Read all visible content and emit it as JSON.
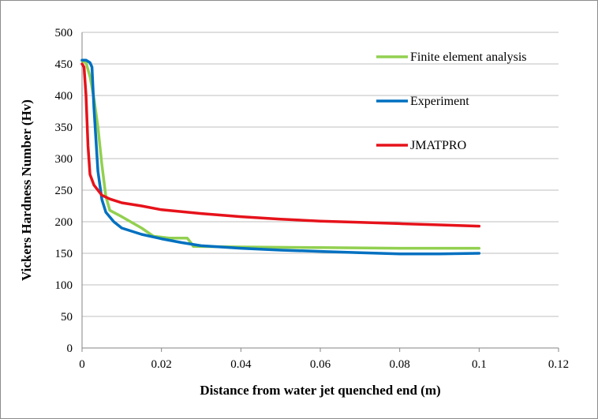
{
  "chart_data": {
    "type": "line",
    "title": "",
    "xlabel": "Distance from water jet quenched end (m)",
    "ylabel": "Vickers  Hardness Number (Hv)",
    "xlim": [
      0,
      0.12
    ],
    "ylim": [
      0,
      500
    ],
    "x_ticks": [
      "0",
      "0.02",
      "0.04",
      "0.06",
      "0.08",
      "0.1",
      "0.12"
    ],
    "y_ticks": [
      "0",
      "50",
      "100",
      "150",
      "200",
      "250",
      "300",
      "350",
      "400",
      "450",
      "500"
    ],
    "grid": "horizontal",
    "legend_position": "top-right",
    "series": [
      {
        "name": "Finite element analysis",
        "color": "#92d050",
        "points": [
          [
            0,
            455
          ],
          [
            0.001,
            452
          ],
          [
            0.002,
            430
          ],
          [
            0.003,
            395
          ],
          [
            0.004,
            350
          ],
          [
            0.005,
            290
          ],
          [
            0.006,
            240
          ],
          [
            0.007,
            218
          ],
          [
            0.01,
            208
          ],
          [
            0.015,
            190
          ],
          [
            0.018,
            177
          ],
          [
            0.022,
            174
          ],
          [
            0.0265,
            174
          ],
          [
            0.0275,
            166
          ],
          [
            0.028,
            161
          ],
          [
            0.04,
            160
          ],
          [
            0.06,
            159
          ],
          [
            0.08,
            158
          ],
          [
            0.1,
            158
          ]
        ]
      },
      {
        "name": "Experiment",
        "color": "#0070c0",
        "points": [
          [
            0,
            456
          ],
          [
            0.001,
            456
          ],
          [
            0.002,
            452
          ],
          [
            0.0025,
            445
          ],
          [
            0.003,
            380
          ],
          [
            0.004,
            280
          ],
          [
            0.005,
            235
          ],
          [
            0.006,
            215
          ],
          [
            0.008,
            200
          ],
          [
            0.01,
            190
          ],
          [
            0.015,
            180
          ],
          [
            0.02,
            173
          ],
          [
            0.025,
            167
          ],
          [
            0.03,
            162
          ],
          [
            0.04,
            158
          ],
          [
            0.05,
            155
          ],
          [
            0.06,
            153
          ],
          [
            0.07,
            151
          ],
          [
            0.08,
            149
          ],
          [
            0.09,
            149
          ],
          [
            0.1,
            150
          ]
        ]
      },
      {
        "name": "JMATPRO",
        "color": "#e6121a",
        "points": [
          [
            0,
            450
          ],
          [
            0.0005,
            445
          ],
          [
            0.001,
            400
          ],
          [
            0.0015,
            320
          ],
          [
            0.002,
            275
          ],
          [
            0.003,
            258
          ],
          [
            0.004,
            250
          ],
          [
            0.005,
            242
          ],
          [
            0.007,
            236
          ],
          [
            0.01,
            230
          ],
          [
            0.015,
            225
          ],
          [
            0.02,
            219
          ],
          [
            0.03,
            213
          ],
          [
            0.04,
            208
          ],
          [
            0.05,
            204
          ],
          [
            0.06,
            201
          ],
          [
            0.07,
            199
          ],
          [
            0.08,
            197
          ],
          [
            0.09,
            195
          ],
          [
            0.1,
            193
          ]
        ]
      }
    ]
  }
}
